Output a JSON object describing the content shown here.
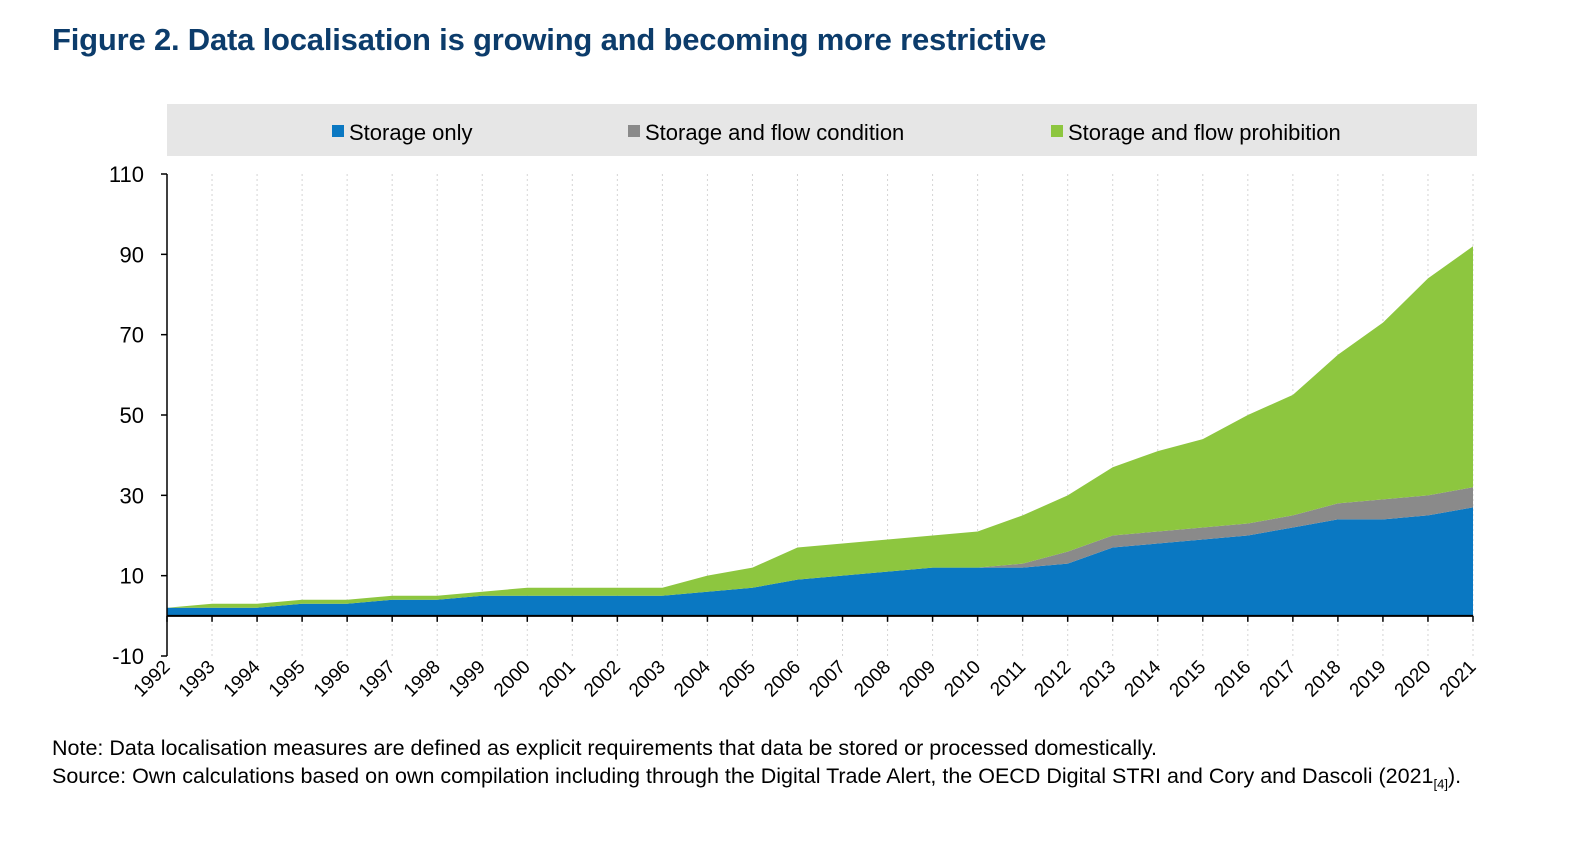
{
  "figure": {
    "title": "Figure 2. Data localisation is growing and becoming more restrictive",
    "note": "Note: Data localisation measures are defined as explicit requirements that data be stored or processed domestically.",
    "source_text": "Source: Own calculations based on own compilation including through the Digital Trade Alert, the OECD Digital STRI and Cory and Dascoli (2021",
    "source_ref": "[4]",
    "source_end": ")."
  },
  "colors": {
    "storage_only": "#0a78c2",
    "storage_flow_condition": "#8a8a8a",
    "storage_flow_prohibition": "#8dc63f",
    "legend_bg": "#e6e6e6",
    "title": "#0c3c6b"
  },
  "chart_data": {
    "type": "area",
    "stacked": true,
    "x": [
      "1992",
      "1993",
      "1994",
      "1995",
      "1996",
      "1997",
      "1998",
      "1999",
      "2000",
      "2001",
      "2002",
      "2003",
      "2004",
      "2005",
      "2006",
      "2007",
      "2008",
      "2009",
      "2010",
      "2011",
      "2012",
      "2013",
      "2014",
      "2015",
      "2016",
      "2017",
      "2018",
      "2019",
      "2020",
      "2021"
    ],
    "series": [
      {
        "name": "Storage only",
        "color": "#0a78c2",
        "values": [
          2,
          2,
          2,
          3,
          3,
          4,
          4,
          5,
          5,
          5,
          5,
          5,
          6,
          7,
          9,
          10,
          11,
          12,
          12,
          12,
          13,
          17,
          18,
          19,
          20,
          22,
          24,
          24,
          25,
          27
        ]
      },
      {
        "name": "Storage and flow condition",
        "color": "#8a8a8a",
        "values": [
          0,
          0,
          0,
          0,
          0,
          0,
          0,
          0,
          0,
          0,
          0,
          0,
          0,
          0,
          0,
          0,
          0,
          0,
          0,
          1,
          3,
          3,
          3,
          3,
          3,
          3,
          4,
          5,
          5,
          5
        ]
      },
      {
        "name": "Storage and flow prohibition",
        "color": "#8dc63f",
        "values": [
          0,
          1,
          1,
          1,
          1,
          1,
          1,
          1,
          2,
          2,
          2,
          2,
          4,
          5,
          8,
          8,
          8,
          8,
          9,
          12,
          14,
          17,
          20,
          22,
          27,
          30,
          37,
          44,
          54,
          60
        ]
      }
    ],
    "ylim": [
      -10,
      110
    ],
    "yticks": [
      110,
      90,
      70,
      50,
      30,
      10,
      -10
    ],
    "legend_position": "top",
    "grid": "vertical",
    "xlabel": "",
    "ylabel": ""
  }
}
